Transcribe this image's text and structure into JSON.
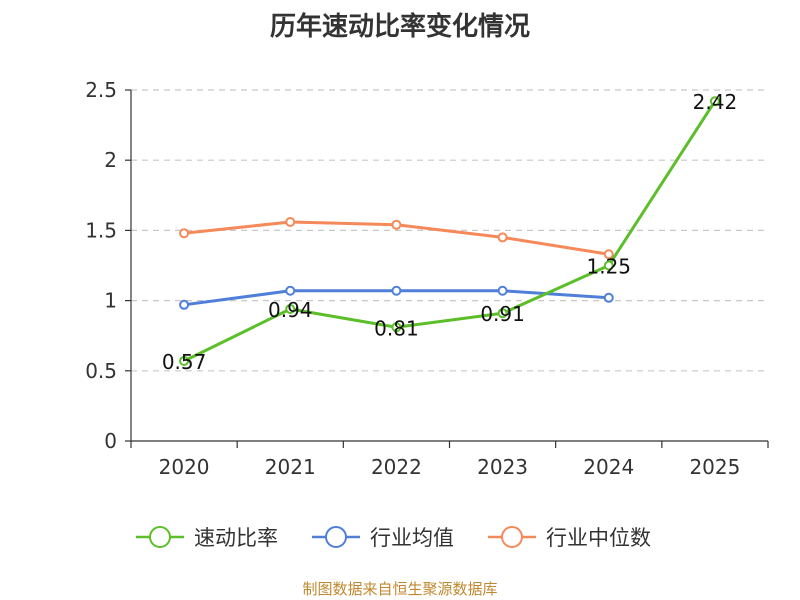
{
  "chart_data": {
    "type": "line",
    "title": "历年速动比率变化情况",
    "categories": [
      "2020",
      "2021",
      "2022",
      "2023",
      "2024",
      "2025"
    ],
    "ylim": [
      0,
      2.5
    ],
    "yticks": [
      "0",
      "0.5",
      "1",
      "1.5",
      "2",
      "2.5"
    ],
    "grid": true,
    "legend_position": "bottom",
    "series": [
      {
        "name": "速动比率",
        "color": "#5cbf2a",
        "values": [
          0.57,
          0.94,
          0.81,
          0.91,
          1.25,
          2.42
        ],
        "labels": [
          "0.57",
          "0.94",
          "0.81",
          "0.91",
          "1.25",
          "2.42"
        ]
      },
      {
        "name": "行业均值",
        "color": "#4f7fd8",
        "values": [
          0.97,
          1.07,
          1.07,
          1.07,
          1.02,
          null
        ]
      },
      {
        "name": "行业中位数",
        "color": "#f5895a",
        "values": [
          1.48,
          1.56,
          1.54,
          1.45,
          1.33,
          null
        ]
      }
    ]
  },
  "footer": "制图数据来自恒生聚源数据库"
}
